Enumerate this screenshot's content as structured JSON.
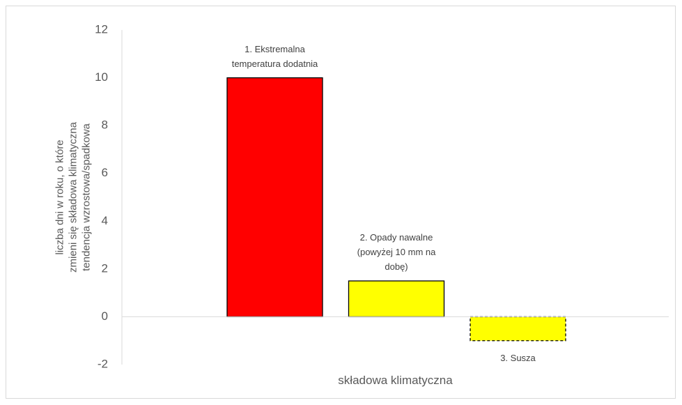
{
  "chart_data": {
    "type": "bar",
    "ylabel": "liczba dni w roku, o które\nzmieni się składowa klimatyczna\ntendencja wzrostowa/spadkowa",
    "xlabel": "składowa klimatyczna",
    "categories": [
      "1. Ekstremalna\ntemperatura dodatnia",
      "2. Opady nawalne\n(powyżej 10 mm na\ndobę)",
      "3. Susza"
    ],
    "values": [
      10,
      1.5,
      -1
    ],
    "colors": [
      "#ff0000",
      "#ffff00",
      "#ffff00"
    ],
    "dashed_border": [
      false,
      false,
      true
    ],
    "ylim": [
      -2,
      12
    ],
    "yticks": [
      -2,
      0,
      2,
      4,
      6,
      8,
      10,
      12
    ],
    "grid": false
  }
}
